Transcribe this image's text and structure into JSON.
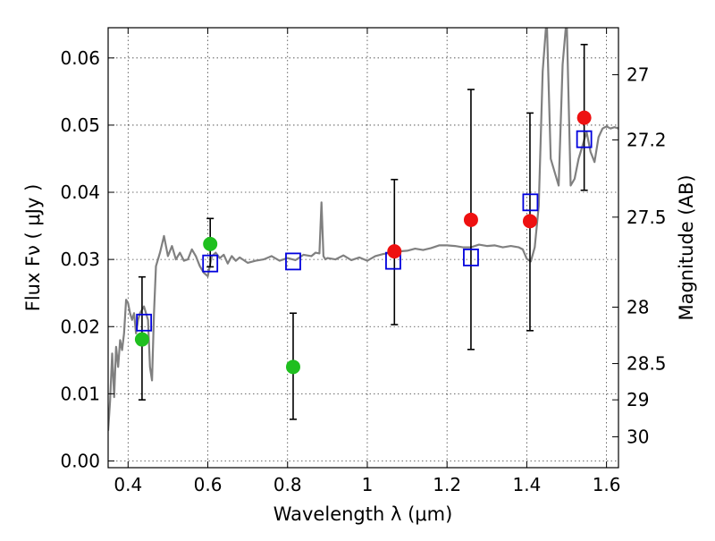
{
  "chart_data": {
    "type": "scatter",
    "title": "",
    "xlabel": "Wavelength  λ (μm)",
    "ylabel": "Flux  Fν  ( μJy )",
    "ylabel_right": "Magnitude (AB)",
    "xlim": [
      0.35,
      1.63
    ],
    "ylim": [
      -0.001,
      0.0645
    ],
    "grid": true,
    "x_ticks": [
      0.4,
      0.6,
      0.8,
      1.0,
      1.2,
      1.4,
      1.6
    ],
    "x_tick_labels": [
      "0.4",
      "0.6",
      "0.8",
      "1",
      "1.2",
      "1.4",
      "1.6"
    ],
    "y_ticks": [
      0.0,
      0.01,
      0.02,
      0.03,
      0.04,
      0.05,
      0.06
    ],
    "y_tick_labels": [
      "0.00",
      "0.01",
      "0.02",
      "0.03",
      "0.04",
      "0.05",
      "0.06"
    ],
    "right_ticks": [
      {
        "label": "27",
        "flux": 0.0575
      },
      {
        "label": "27.2",
        "flux": 0.0478
      },
      {
        "label": "27.5",
        "flux": 0.0363
      },
      {
        "label": "28",
        "flux": 0.0229
      },
      {
        "label": "28.5",
        "flux": 0.0145
      },
      {
        "label": "29",
        "flux": 0.0091
      },
      {
        "label": "30",
        "flux": 0.0036
      }
    ],
    "series": [
      {
        "marker": "circle",
        "color": "#1fbf1f",
        "points": [
          {
            "x": 0.435,
            "y": 0.0181,
            "err_low": 0.0091,
            "err_high": 0.0274
          },
          {
            "x": 0.606,
            "y": 0.0323,
            "err_low": 0.0289,
            "err_high": 0.0361
          },
          {
            "x": 0.814,
            "y": 0.014,
            "err_low": 0.0062,
            "err_high": 0.022
          }
        ]
      },
      {
        "marker": "circle",
        "color": "#ee1111",
        "points": [
          {
            "x": 1.068,
            "y": 0.0312,
            "err_low": 0.0203,
            "err_high": 0.0419
          },
          {
            "x": 1.26,
            "y": 0.0359,
            "err_low": 0.0166,
            "err_high": 0.0553
          },
          {
            "x": 1.408,
            "y": 0.0357,
            "err_low": 0.0194,
            "err_high": 0.0518
          },
          {
            "x": 1.544,
            "y": 0.0511,
            "err_low": 0.0403,
            "err_high": 0.062
          }
        ]
      },
      {
        "marker": "open-square",
        "color": "#0000dd",
        "points": [
          {
            "x": 0.44,
            "y": 0.0206
          },
          {
            "x": 0.606,
            "y": 0.0294
          },
          {
            "x": 0.814,
            "y": 0.0297
          },
          {
            "x": 1.065,
            "y": 0.0298
          },
          {
            "x": 1.26,
            "y": 0.0303
          },
          {
            "x": 1.409,
            "y": 0.0385
          },
          {
            "x": 1.544,
            "y": 0.0479
          }
        ]
      },
      {
        "marker": "line",
        "color": "#808080",
        "x": [
          0.35,
          0.355,
          0.36,
          0.365,
          0.37,
          0.375,
          0.38,
          0.385,
          0.39,
          0.395,
          0.4,
          0.405,
          0.41,
          0.415,
          0.42,
          0.425,
          0.43,
          0.44,
          0.45,
          0.455,
          0.46,
          0.465,
          0.47,
          0.48,
          0.49,
          0.5,
          0.51,
          0.52,
          0.53,
          0.54,
          0.55,
          0.56,
          0.57,
          0.58,
          0.59,
          0.6,
          0.61,
          0.62,
          0.63,
          0.64,
          0.65,
          0.66,
          0.67,
          0.68,
          0.7,
          0.72,
          0.74,
          0.76,
          0.78,
          0.8,
          0.82,
          0.84,
          0.86,
          0.87,
          0.88,
          0.885,
          0.89,
          0.895,
          0.9,
          0.92,
          0.94,
          0.96,
          0.98,
          1.0,
          1.02,
          1.04,
          1.06,
          1.08,
          1.1,
          1.12,
          1.14,
          1.16,
          1.18,
          1.2,
          1.22,
          1.24,
          1.26,
          1.28,
          1.3,
          1.32,
          1.34,
          1.36,
          1.38,
          1.39,
          1.4,
          1.41,
          1.42,
          1.43,
          1.44,
          1.45,
          1.46,
          1.47,
          1.48,
          1.49,
          1.5,
          1.51,
          1.52,
          1.53,
          1.54,
          1.55,
          1.56,
          1.57,
          1.58,
          1.59,
          1.6,
          1.61,
          1.62,
          1.63
        ],
        "y": [
          0.0045,
          0.009,
          0.016,
          0.0095,
          0.017,
          0.014,
          0.018,
          0.0165,
          0.019,
          0.024,
          0.0235,
          0.022,
          0.021,
          0.022,
          0.019,
          0.021,
          0.022,
          0.023,
          0.021,
          0.014,
          0.012,
          0.022,
          0.029,
          0.031,
          0.0335,
          0.0305,
          0.032,
          0.03,
          0.031,
          0.0298,
          0.03,
          0.0315,
          0.0305,
          0.029,
          0.028,
          0.0275,
          0.0305,
          0.031,
          0.0302,
          0.0307,
          0.0294,
          0.0305,
          0.0298,
          0.0303,
          0.0295,
          0.0298,
          0.03,
          0.0305,
          0.0298,
          0.0302,
          0.0299,
          0.0307,
          0.0305,
          0.031,
          0.0309,
          0.0385,
          0.0305,
          0.03,
          0.0302,
          0.03,
          0.0306,
          0.0299,
          0.0303,
          0.0298,
          0.0305,
          0.0308,
          0.031,
          0.0312,
          0.0313,
          0.0316,
          0.0314,
          0.0317,
          0.0321,
          0.0321,
          0.032,
          0.0318,
          0.0318,
          0.0322,
          0.032,
          0.0321,
          0.0318,
          0.032,
          0.0318,
          0.0315,
          0.0301,
          0.0297,
          0.0318,
          0.038,
          0.058,
          0.066,
          0.045,
          0.043,
          0.041,
          0.059,
          0.066,
          0.041,
          0.042,
          0.045,
          0.047,
          0.049,
          0.046,
          0.0445,
          0.0482,
          0.0495,
          0.0498,
          0.0495,
          0.0497,
          0.0495
        ]
      }
    ]
  }
}
